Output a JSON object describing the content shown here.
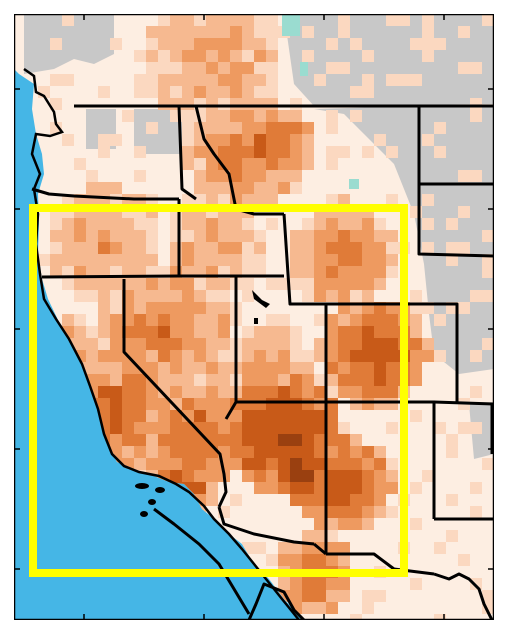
{
  "map": {
    "colors": {
      "ocean": "#45b6e6",
      "no_data": "#c8c8c8",
      "near_zero": "#fdeee2",
      "light": "#fbd8c0",
      "light_mid": "#f6b990",
      "mid": "#ee9a60",
      "mid_dark": "#e07b38",
      "dark": "#c85a18",
      "darker": "#9a4010",
      "darkest": "#5a3410",
      "teal": "#9adcd0",
      "border": "#000000",
      "highlight_box": "#ffff00",
      "frame": "#000000"
    },
    "highlight_box_present": true
  }
}
